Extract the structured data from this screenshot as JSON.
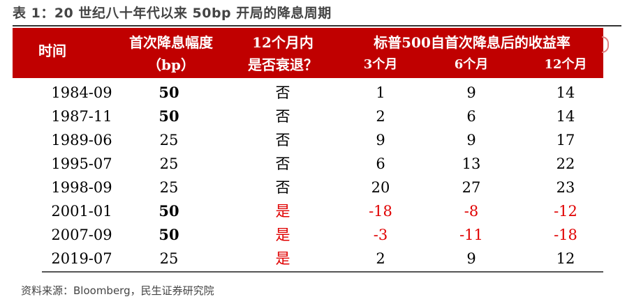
{
  "title": "表 1：20 世纪八十年代以来 50bp 开局的降息周期",
  "header": {
    "time": "时间",
    "first_cut": "首次降息幅度",
    "first_cut_unit": "（bp）",
    "recession_line1": "12个月内",
    "recession_line2": "是否衰退？",
    "sp_group": "标普500自首次降息后的收益率",
    "m3": "3个月",
    "m6": "6个月",
    "m12": "12个月"
  },
  "rows": [
    {
      "date": "1984-09",
      "cut": "50",
      "recession": "否",
      "r3": "1",
      "r6": "9",
      "r12": "14"
    },
    {
      "date": "1987-11",
      "cut": "50",
      "recession": "否",
      "r3": "2",
      "r6": "6",
      "r12": "14"
    },
    {
      "date": "1989-06",
      "cut": "25",
      "recession": "否",
      "r3": "9",
      "r6": "9",
      "r12": "17"
    },
    {
      "date": "1995-07",
      "cut": "25",
      "recession": "否",
      "r3": "6",
      "r6": "13",
      "r12": "22"
    },
    {
      "date": "1998-09",
      "cut": "25",
      "recession": "否",
      "r3": "20",
      "r6": "27",
      "r12": "23"
    },
    {
      "date": "2001-01",
      "cut": "50",
      "recession": "是",
      "r3": "-18",
      "r6": "-8",
      "r12": "-12"
    },
    {
      "date": "2007-09",
      "cut": "50",
      "recession": "是",
      "r3": "-3",
      "r6": "-11",
      "r12": "-18"
    },
    {
      "date": "2019-07",
      "cut": "25",
      "recession": "是",
      "r3": "2",
      "r6": "9",
      "r12": "12"
    }
  ],
  "source": "资料来源：Bloomberg，民生证券研究院",
  "colors": {
    "header_bg": "#c00000",
    "negative": "#e00000"
  }
}
